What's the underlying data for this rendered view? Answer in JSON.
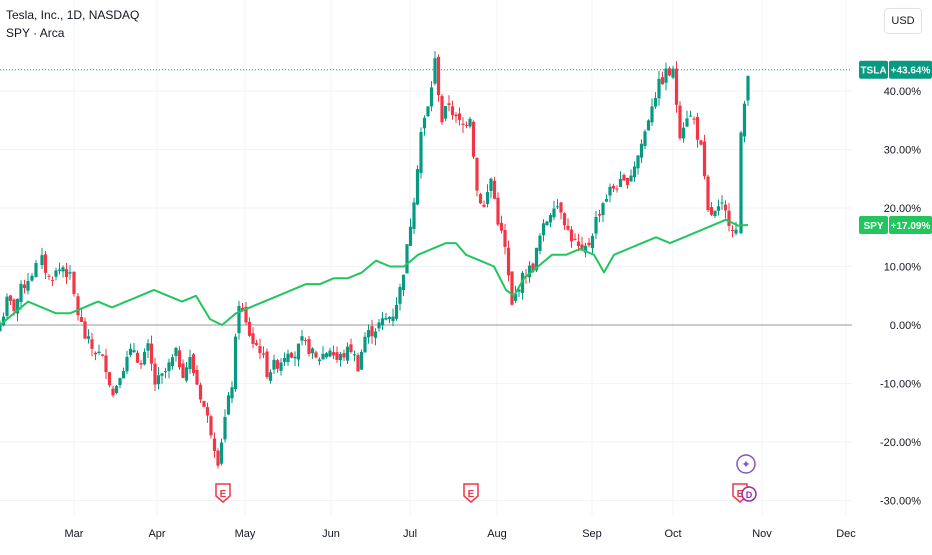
{
  "header": {
    "title": "Tesla, Inc., 1D, NASDAQ",
    "compare_symbol": "SPY · Arca",
    "currency_button": "USD"
  },
  "colors": {
    "up": "#089981",
    "down": "#f23645",
    "spy_line": "#22c55e",
    "zero_line": "#9598a1",
    "grid": "#f0f3fa",
    "axis_text": "#131722",
    "earnings": "#f23645",
    "dividend": "#9c27b0"
  },
  "chart_data": {
    "type": "line",
    "title": "Tesla, Inc., 1D, NASDAQ",
    "yaxis": {
      "unit": "%",
      "ylim": [
        -32,
        55
      ],
      "ticks": [
        "40.00%",
        "30.00%",
        "20.00%",
        "10.00%",
        "0.00%",
        "-10.00%",
        "-20.00%",
        "-30.00%"
      ],
      "tick_values": [
        40,
        30,
        20,
        10,
        0,
        -10,
        -20,
        -30
      ]
    },
    "xaxis": {
      "labels": [
        "Mar",
        "Apr",
        "May",
        "Jun",
        "Jul",
        "Aug",
        "Sep",
        "Oct",
        "Nov",
        "Dec"
      ]
    },
    "grid": true,
    "last_value_labels": [
      {
        "symbol": "TSLA",
        "value": "+43.64%",
        "y": 43.64,
        "color": "#089981"
      },
      {
        "symbol": "SPY",
        "value": "+17.09%",
        "y": 17.09,
        "color": "#22c55e"
      }
    ],
    "series": [
      {
        "name": "TSLA",
        "kind": "candlestick",
        "description": "weekly-sampled close % change vs start",
        "points": [
          [
            0,
            0
          ],
          [
            7,
            4
          ],
          [
            14,
            3
          ],
          [
            21,
            6
          ],
          [
            28,
            8
          ],
          [
            36,
            10
          ],
          [
            42,
            11
          ],
          [
            49,
            8
          ],
          [
            56,
            9
          ],
          [
            63,
            10
          ],
          [
            70,
            8
          ],
          [
            78,
            2
          ],
          [
            85,
            -2
          ],
          [
            92,
            -4
          ],
          [
            99,
            -5
          ],
          [
            106,
            -7
          ],
          [
            113,
            -12
          ],
          [
            120,
            -8
          ],
          [
            127,
            -6
          ],
          [
            134,
            -4
          ],
          [
            141,
            -7
          ],
          [
            148,
            -4
          ],
          [
            155,
            -10
          ],
          [
            162,
            -9
          ],
          [
            169,
            -7
          ],
          [
            176,
            -5
          ],
          [
            183,
            -8
          ],
          [
            190,
            -6
          ],
          [
            197,
            -10
          ],
          [
            204,
            -14
          ],
          [
            211,
            -18
          ],
          [
            218,
            -23
          ],
          [
            225,
            -16
          ],
          [
            232,
            -10
          ],
          [
            239,
            4
          ],
          [
            246,
            0
          ],
          [
            253,
            -3
          ],
          [
            260,
            -4
          ],
          [
            267,
            -8
          ],
          [
            274,
            -7
          ],
          [
            281,
            -6
          ],
          [
            288,
            -4
          ],
          [
            295,
            -5
          ],
          [
            302,
            -3
          ],
          [
            309,
            -4
          ],
          [
            316,
            -6
          ],
          [
            323,
            -5
          ],
          [
            330,
            -4
          ],
          [
            337,
            -6
          ],
          [
            344,
            -5
          ],
          [
            351,
            -4
          ],
          [
            358,
            -7
          ],
          [
            365,
            -2
          ],
          [
            372,
            -1
          ],
          [
            379,
            0
          ],
          [
            386,
            1
          ],
          [
            393,
            2
          ],
          [
            400,
            6
          ],
          [
            407,
            13
          ],
          [
            414,
            22
          ],
          [
            421,
            33
          ],
          [
            428,
            37
          ],
          [
            435,
            45
          ],
          [
            442,
            35
          ],
          [
            449,
            38
          ],
          [
            456,
            35
          ],
          [
            463,
            34
          ],
          [
            470,
            36
          ],
          [
            477,
            23
          ],
          [
            484,
            20
          ],
          [
            491,
            25
          ],
          [
            498,
            18
          ],
          [
            505,
            13
          ],
          [
            512,
            3
          ],
          [
            519,
            7
          ],
          [
            526,
            9
          ],
          [
            533,
            10
          ],
          [
            540,
            15
          ],
          [
            547,
            18
          ],
          [
            554,
            21
          ],
          [
            561,
            20
          ],
          [
            568,
            16
          ],
          [
            575,
            14
          ],
          [
            582,
            12
          ],
          [
            589,
            14
          ],
          [
            596,
            18
          ],
          [
            603,
            21
          ],
          [
            610,
            23
          ],
          [
            617,
            24
          ],
          [
            624,
            24
          ],
          [
            631,
            26
          ],
          [
            638,
            29
          ],
          [
            645,
            33
          ],
          [
            652,
            38
          ],
          [
            659,
            41
          ],
          [
            666,
            43
          ],
          [
            673,
            43
          ],
          [
            680,
            33
          ],
          [
            687,
            36
          ],
          [
            694,
            35
          ],
          [
            701,
            30
          ],
          [
            708,
            19
          ],
          [
            715,
            19
          ],
          [
            722,
            20
          ],
          [
            729,
            18
          ],
          [
            736,
            16
          ],
          [
            741,
            32
          ],
          [
            748,
            43.64
          ]
        ]
      },
      {
        "name": "SPY",
        "kind": "line",
        "points": [
          [
            0,
            0
          ],
          [
            14,
            2
          ],
          [
            28,
            4
          ],
          [
            42,
            3
          ],
          [
            56,
            2
          ],
          [
            70,
            2
          ],
          [
            84,
            3
          ],
          [
            98,
            4
          ],
          [
            112,
            3
          ],
          [
            126,
            4
          ],
          [
            140,
            5
          ],
          [
            154,
            6
          ],
          [
            168,
            5
          ],
          [
            182,
            4
          ],
          [
            196,
            5
          ],
          [
            210,
            1
          ],
          [
            222,
            0
          ],
          [
            236,
            2
          ],
          [
            250,
            3
          ],
          [
            264,
            4
          ],
          [
            278,
            5
          ],
          [
            292,
            6
          ],
          [
            306,
            7
          ],
          [
            320,
            7
          ],
          [
            334,
            8
          ],
          [
            348,
            8
          ],
          [
            362,
            9
          ],
          [
            376,
            11
          ],
          [
            390,
            10
          ],
          [
            404,
            10
          ],
          [
            418,
            12
          ],
          [
            432,
            13
          ],
          [
            446,
            14
          ],
          [
            456,
            14
          ],
          [
            466,
            12
          ],
          [
            480,
            11
          ],
          [
            494,
            10
          ],
          [
            506,
            6
          ],
          [
            514,
            5
          ],
          [
            524,
            8
          ],
          [
            538,
            10
          ],
          [
            552,
            12
          ],
          [
            566,
            12
          ],
          [
            580,
            13
          ],
          [
            594,
            12
          ],
          [
            604,
            9
          ],
          [
            614,
            12
          ],
          [
            628,
            13
          ],
          [
            642,
            14
          ],
          [
            656,
            15
          ],
          [
            670,
            14
          ],
          [
            684,
            15
          ],
          [
            698,
            16
          ],
          [
            712,
            17
          ],
          [
            726,
            18
          ],
          [
            738,
            17
          ],
          [
            748,
            17.09
          ]
        ]
      }
    ],
    "events": [
      {
        "type": "earnings",
        "label": "E",
        "x_pos": "late April"
      },
      {
        "type": "earnings",
        "label": "E",
        "x_pos": "late July"
      },
      {
        "type": "earnings",
        "label": "E",
        "x_pos": "late October"
      },
      {
        "type": "dividend",
        "label": "D",
        "x_pos": "late October"
      },
      {
        "type": "news",
        "label": "✦",
        "x_pos": "late October"
      }
    ]
  }
}
